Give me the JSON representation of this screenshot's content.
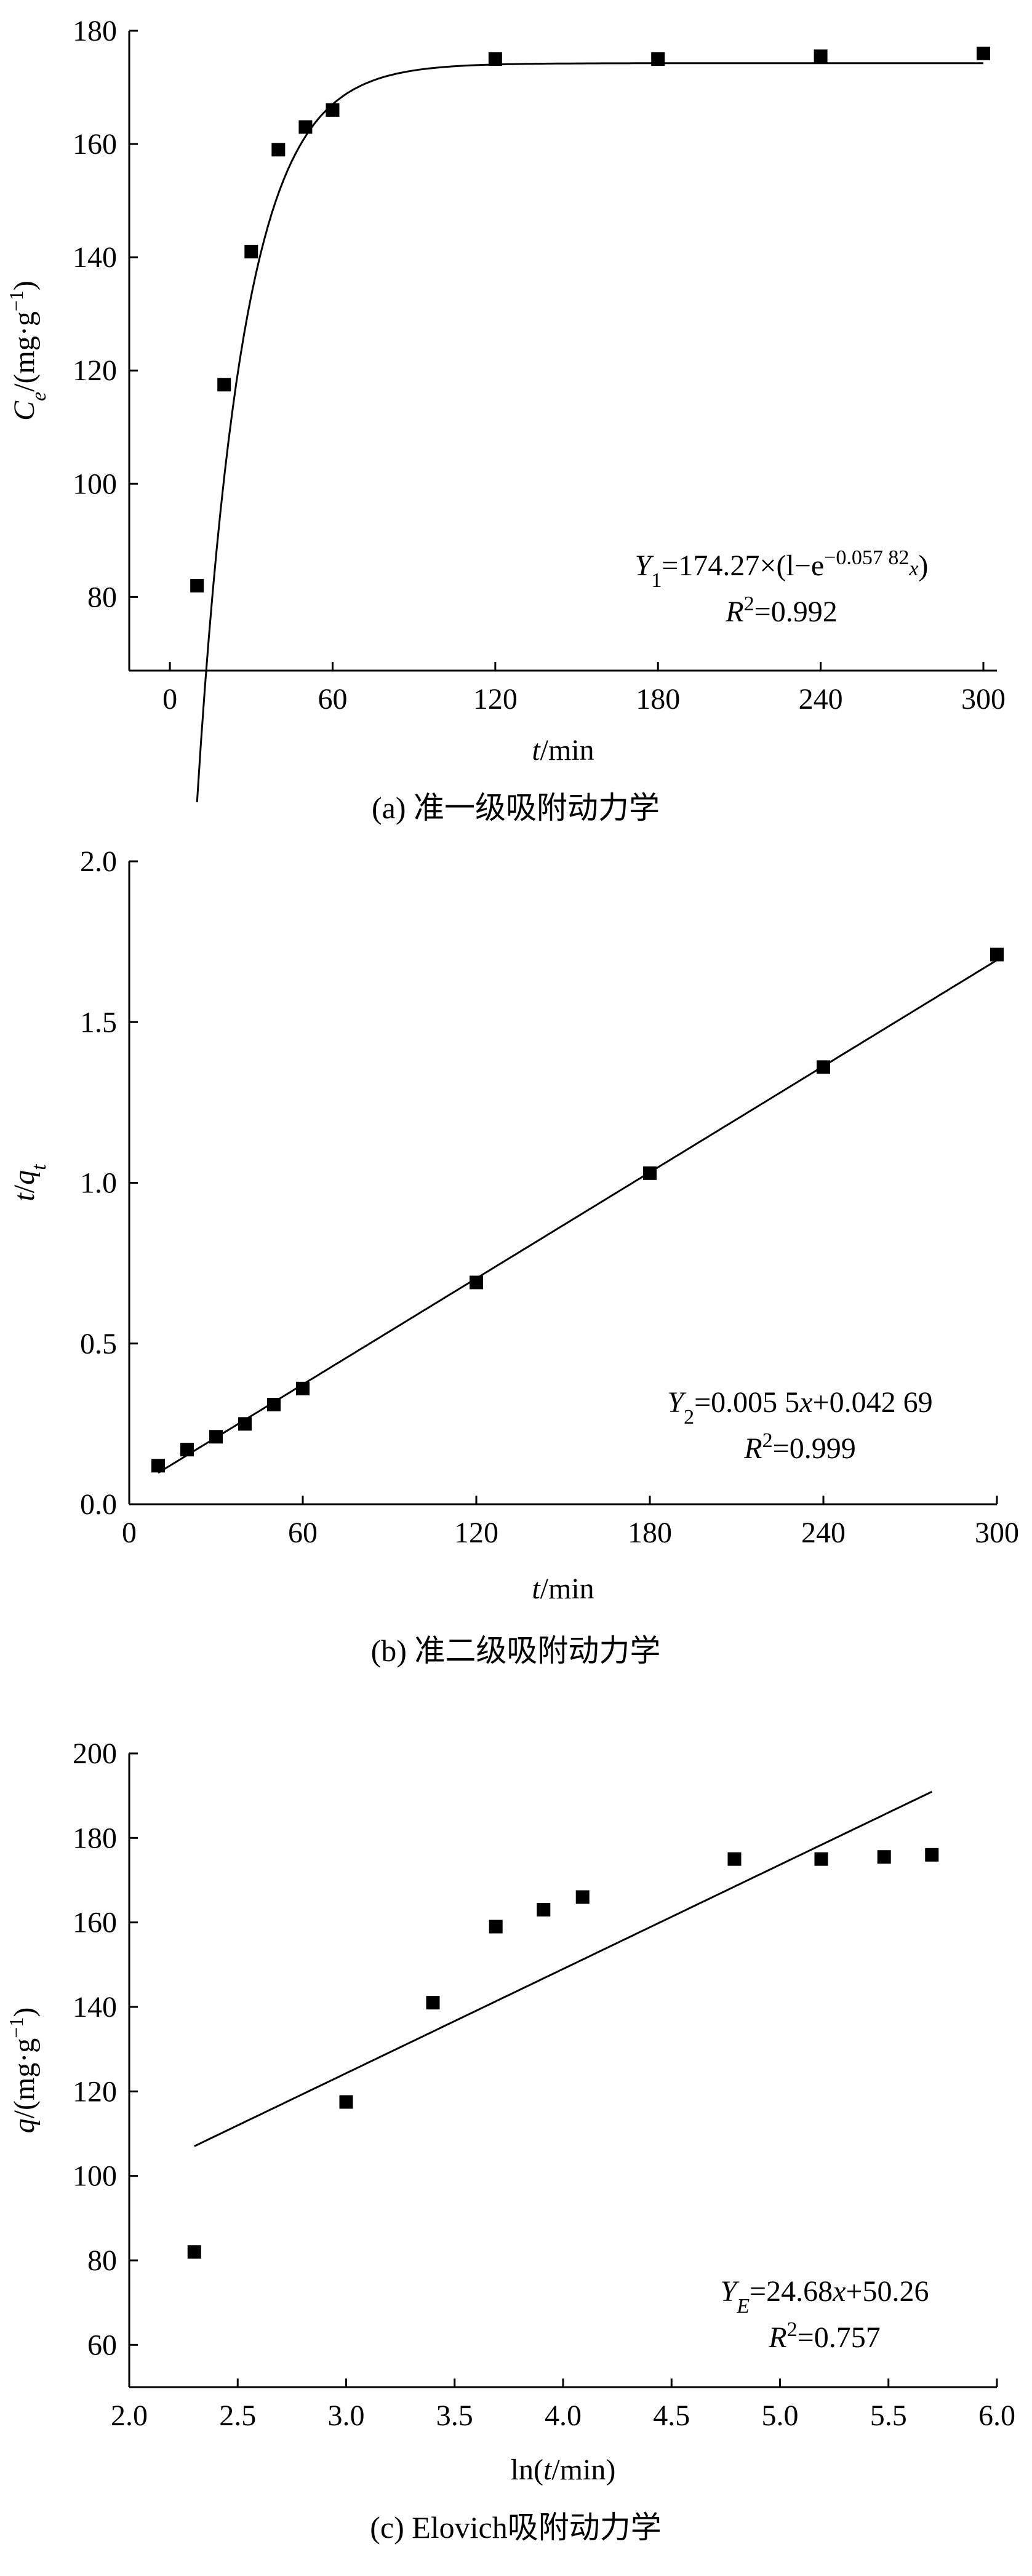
{
  "chart_data": [
    {
      "id": "a",
      "type": "scatter",
      "caption": "(a) 准一级吸附动力学",
      "xlabel": {
        "var": "t",
        "unit": "/min"
      },
      "ylabel": {
        "var": "C",
        "sub": "e",
        "unit": "/(mg·g",
        "sup": "−1",
        "close": ")"
      },
      "xlim": [
        -15,
        305
      ],
      "ylim": [
        67,
        180
      ],
      "xticks": [
        0,
        60,
        120,
        180,
        240,
        300
      ],
      "yticks": [
        80,
        100,
        120,
        140,
        160,
        180
      ],
      "ytick_decimals": 0,
      "points": [
        [
          10,
          82
        ],
        [
          20,
          117.5
        ],
        [
          30,
          141
        ],
        [
          40,
          159
        ],
        [
          50,
          163
        ],
        [
          60,
          166
        ],
        [
          120,
          175
        ],
        [
          180,
          175
        ],
        [
          240,
          175.5
        ],
        [
          300,
          176
        ]
      ],
      "fit": {
        "kind": "exp",
        "a": 174.27,
        "k": 0.05782,
        "x0": 5,
        "x_from": 10,
        "x_to": 300
      },
      "equation": {
        "lhs": "Y",
        "sub": "1",
        "rhs": "=174.27×(l−e",
        "sup": "−0.057 82x",
        "close": ")"
      },
      "r2": {
        "r": "R",
        "sup": "2",
        "val": "=0.992"
      }
    },
    {
      "id": "b",
      "type": "scatter",
      "caption": "(b) 准二级吸附动力学",
      "xlabel": {
        "var": "t",
        "unit": "/min"
      },
      "ylabel": {
        "var": "t/q",
        "sub": "t",
        "unit": "",
        "sup": "",
        "close": ""
      },
      "xlim": [
        0,
        300
      ],
      "ylim": [
        0,
        2.0
      ],
      "xticks": [
        0,
        60,
        120,
        180,
        240,
        300
      ],
      "yticks": [
        0.0,
        0.5,
        1.0,
        1.5,
        2.0
      ],
      "ytick_decimals": 1,
      "points": [
        [
          10,
          0.12
        ],
        [
          20,
          0.17
        ],
        [
          30,
          0.21
        ],
        [
          40,
          0.25
        ],
        [
          50,
          0.31
        ],
        [
          60,
          0.36
        ],
        [
          120,
          0.69
        ],
        [
          180,
          1.03
        ],
        [
          240,
          1.36
        ],
        [
          300,
          1.71
        ]
      ],
      "fit": {
        "kind": "linear",
        "m": 0.0055,
        "b": 0.04269,
        "x_from": 10,
        "x_to": 300
      },
      "equation": {
        "lhs": "Y",
        "sub": "2",
        "rhs": "=0.005 5x+0.042 69",
        "sup": "",
        "close": ""
      },
      "r2": {
        "r": "R",
        "sup": "2",
        "val": "=0.999"
      }
    },
    {
      "id": "c",
      "type": "scatter",
      "caption": "(c) Elovich吸附动力学",
      "xlabel": {
        "var": "ln(t/min)",
        "unit": ""
      },
      "ylabel": {
        "var": "q",
        "sub": "",
        "unit": "/(mg·g",
        "sup": "−1",
        "close": ")"
      },
      "xlim": [
        2.0,
        6.0
      ],
      "ylim": [
        50,
        200
      ],
      "xticks": [
        2.0,
        2.5,
        3.0,
        3.5,
        4.0,
        4.5,
        5.0,
        5.5,
        6.0
      ],
      "yticks": [
        60,
        80,
        100,
        120,
        140,
        160,
        180,
        200
      ],
      "xtick_decimals": 1,
      "ytick_decimals": 0,
      "points": [
        [
          2.3,
          82
        ],
        [
          3.0,
          117.5
        ],
        [
          3.4,
          141
        ],
        [
          3.69,
          159
        ],
        [
          3.91,
          163
        ],
        [
          4.09,
          166
        ],
        [
          4.79,
          175
        ],
        [
          5.19,
          175
        ],
        [
          5.48,
          175.5
        ],
        [
          5.7,
          176
        ]
      ],
      "fit": {
        "kind": "linear",
        "m": 24.68,
        "b": 50.26,
        "x_from": 2.3,
        "x_to": 5.7
      },
      "equation": {
        "lhs": "Y",
        "sub": "E",
        "rhs": "=24.68x+50.26",
        "sup": "",
        "close": ""
      },
      "r2": {
        "r": "R",
        "sup": "2",
        "val": "=0.757"
      }
    }
  ]
}
